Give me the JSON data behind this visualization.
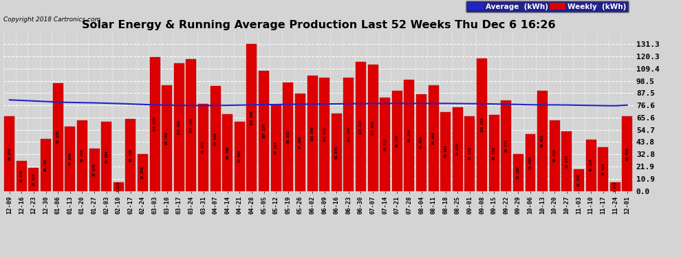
{
  "title": "Solar Energy & Running Average Production Last 52 Weeks Thu Dec 6 16:26",
  "copyright": "Copyright 2018 Cartronics.com",
  "bar_color": "#dd0000",
  "avg_line_color": "#2222cc",
  "background_color": "#d4d4d4",
  "plot_bg_color": "#d4d4d4",
  "grid_color": "#ffffff",
  "ytick_values": [
    0.0,
    10.9,
    21.9,
    32.8,
    43.8,
    54.7,
    65.6,
    76.6,
    87.5,
    98.5,
    109.4,
    120.3,
    131.3
  ],
  "legend_avg_color": "#2222cc",
  "legend_weekly_color": "#dd0000",
  "categories": [
    "12-09",
    "12-16",
    "12-23",
    "12-30",
    "01-06",
    "01-13",
    "01-20",
    "01-27",
    "02-03",
    "02-10",
    "02-17",
    "02-24",
    "03-03",
    "03-10",
    "03-17",
    "03-24",
    "03-31",
    "04-07",
    "04-14",
    "04-21",
    "04-28",
    "05-05",
    "05-12",
    "05-19",
    "05-26",
    "06-02",
    "06-09",
    "06-16",
    "06-23",
    "06-30",
    "07-07",
    "07-14",
    "07-21",
    "07-28",
    "08-04",
    "08-11",
    "08-18",
    "08-25",
    "09-01",
    "09-08",
    "09-15",
    "09-22",
    "09-29",
    "10-06",
    "10-13",
    "10-20",
    "10-27",
    "11-03",
    "11-10",
    "11-17",
    "11-24",
    "12-01"
  ],
  "weekly_values": [
    66.856,
    26.936,
    20.838,
    46.23,
    96.638,
    57.64,
    63.296,
    37.972,
    61.694,
    7.926,
    64.12,
    32.856,
    120.02,
    94.78,
    114.184,
    117.748,
    78.072,
    93.84,
    68.768,
    62.08,
    131.28,
    107.136,
    77.364,
    96.832,
    87.192,
    102.968,
    101.512,
    68.976,
    101.104,
    115.224,
    112.864,
    83.712,
    89.76,
    99.204,
    86.668,
    94.496,
    70.692,
    74.956,
    67.008,
    118.256,
    67.856,
    80.772,
    33.1,
    50.56,
    89.412,
    63.308,
    52.956,
    19.148,
    46.104,
    38.924,
    7.84,
    66.856
  ],
  "avg_values": [
    81.5,
    81.0,
    80.5,
    80.0,
    79.5,
    79.2,
    79.0,
    78.8,
    78.5,
    78.2,
    77.8,
    77.4,
    77.0,
    76.8,
    76.6,
    76.5,
    76.4,
    76.5,
    76.6,
    76.8,
    77.0,
    77.2,
    77.3,
    77.5,
    77.6,
    77.7,
    77.8,
    77.9,
    78.0,
    78.1,
    78.2,
    78.3,
    78.3,
    78.3,
    78.3,
    78.3,
    78.3,
    78.2,
    78.1,
    78.0,
    77.8,
    77.6,
    77.4,
    77.1,
    77.0,
    77.0,
    76.9,
    76.7,
    76.5,
    76.3,
    76.2,
    76.8
  ]
}
